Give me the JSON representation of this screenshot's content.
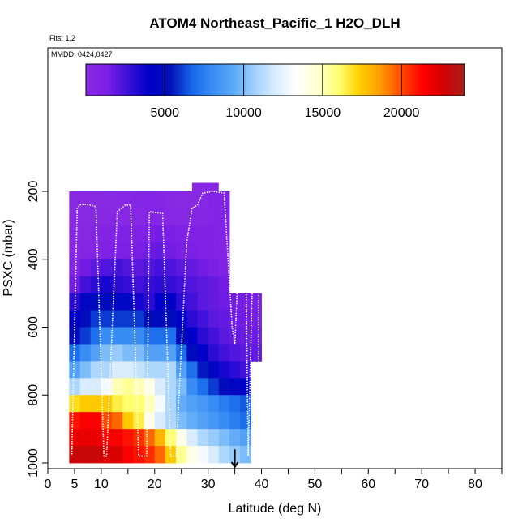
{
  "chart_data": {
    "type": "heatmap",
    "title": "ATOM4 Northeast_Pacific_1 H2O_DLH",
    "flights_label": "Flts: 1,2",
    "mmdd_label": "MMDD: 0424,0427",
    "xlabel": "Latitude (deg N)",
    "ylabel": "PSXC (mbar)",
    "xlim": [
      0,
      85
    ],
    "ylim": [
      1000,
      100
    ],
    "x_ticks": [
      0,
      5,
      10,
      20,
      30,
      40,
      50,
      60,
      70,
      80
    ],
    "x_tick_labels": [
      "0",
      "5",
      "10",
      "20",
      "30",
      "40",
      "50",
      "60",
      "70",
      "80"
    ],
    "x_minor_ticks": [
      15,
      25,
      35,
      45,
      55,
      65,
      75,
      85
    ],
    "y_ticks": [
      200,
      400,
      600,
      800,
      1000
    ],
    "y_tick_labels": [
      "200",
      "400",
      "600",
      "800",
      "1000"
    ],
    "colorbar": {
      "min": 0,
      "max": 24000,
      "ticks": [
        5000,
        10000,
        15000,
        20000
      ],
      "tick_labels": [
        "5000",
        "10000",
        "15000",
        "20000"
      ],
      "colors": [
        "#8a2be2",
        "#7b1fe6",
        "#3a10d8",
        "#0000c8",
        "#0010b8",
        "#1565e8",
        "#3a8cf5",
        "#5aa8f8",
        "#9fd0fb",
        "#d8ecfd",
        "#ffffff",
        "#ffffd0",
        "#ffff70",
        "#ffd000",
        "#ff9a00",
        "#ff4a00",
        "#ff0000",
        "#d40000",
        "#a52020"
      ]
    },
    "pressure_levels": [
      225,
      275,
      325,
      375,
      425,
      475,
      525,
      575,
      625,
      675,
      725,
      775,
      825,
      875,
      925,
      975
    ],
    "lat_bins": [
      4,
      6,
      8,
      10,
      12,
      14,
      16,
      18,
      20,
      22,
      24,
      26,
      28,
      30,
      32,
      34,
      36,
      38,
      40
    ],
    "h2o_ppmv": [
      [
        100,
        120,
        150,
        200,
        300,
        350,
        600,
        700,
        500,
        300,
        200,
        300,
        400,
        800,
        900,
        800,
        1000,
        1100,
        1200
      ],
      [
        150,
        200,
        250,
        300,
        400,
        400,
        400,
        500,
        500,
        400,
        300,
        400,
        500,
        700,
        800,
        900,
        1000,
        1100,
        1200
      ],
      [
        300,
        400,
        600,
        800,
        1000,
        1000,
        1000,
        1200,
        1500,
        1300,
        1000,
        1000,
        900,
        900,
        800,
        700,
        800,
        900,
        1000
      ],
      [
        400,
        600,
        800,
        1000,
        1200,
        1200,
        1400,
        1600,
        1800,
        1500,
        1300,
        1200,
        1000,
        900,
        800,
        700,
        800,
        900,
        1000
      ],
      [
        800,
        1500,
        2000,
        2200,
        2500,
        2200,
        2000,
        2200,
        2500,
        2300,
        2000,
        1800,
        1500,
        1200,
        1000,
        900,
        800,
        900,
        1000
      ],
      [
        1500,
        2500,
        3000,
        3500,
        3000,
        2800,
        2500,
        2800,
        3000,
        2800,
        2500,
        2200,
        2000,
        1800,
        1500,
        1300,
        1200,
        1000,
        1000
      ],
      [
        3000,
        4500,
        5000,
        5000,
        4500,
        4500,
        3500,
        3000,
        4000,
        4000,
        3000,
        2500,
        2000,
        1800,
        1600,
        1500,
        1400,
        1300,
        1200
      ],
      [
        4000,
        5000,
        6000,
        6000,
        6000,
        6000,
        6000,
        5000,
        5000,
        5000,
        4000,
        3000,
        2500,
        2000,
        1800,
        1600,
        1500,
        1400,
        1300
      ],
      [
        5000,
        6000,
        7000,
        8000,
        8000,
        8000,
        8000,
        7000,
        7000,
        7000,
        5000,
        4000,
        3000,
        2500,
        2000,
        1800,
        1700,
        1600,
        1500
      ],
      [
        7000,
        8000,
        9000,
        10000,
        10500,
        10000,
        10000,
        9000,
        9000,
        9000,
        7000,
        5000,
        4000,
        3000,
        2500,
        2200,
        2000,
        1800,
        1700
      ],
      [
        9000,
        10000,
        11000,
        11000,
        12000,
        12000,
        11500,
        11000,
        11000,
        11000,
        9000,
        7000,
        5500,
        4500,
        3500,
        3000,
        2500,
        2300,
        2100
      ],
      [
        11000,
        12000,
        12000,
        13000,
        15000,
        15500,
        15000,
        14000,
        12000,
        11000,
        10000,
        8000,
        7000,
        6000,
        5000,
        4500,
        4000,
        3500,
        3000
      ],
      [
        17000,
        17500,
        17500,
        17500,
        16500,
        16000,
        16000,
        15000,
        13000,
        11000,
        9500,
        9000,
        8500,
        8000,
        7500,
        7000,
        6500,
        6000,
        5500
      ],
      [
        21000,
        21500,
        21500,
        20000,
        19500,
        17500,
        16500,
        14000,
        12000,
        11000,
        10000,
        9500,
        9000,
        8500,
        8000,
        7500,
        7000,
        6500,
        6000
      ],
      [
        22000,
        22000,
        22000,
        21500,
        21500,
        21000,
        20500,
        19500,
        18000,
        16000,
        14000,
        12000,
        11000,
        10500,
        10000,
        9500,
        9000,
        8500,
        8000
      ],
      [
        23000,
        23000,
        23000,
        22500,
        22500,
        21500,
        21000,
        20500,
        19500,
        17500,
        15500,
        14000,
        13000,
        12000,
        11000,
        10500,
        10000,
        9500,
        9000
      ]
    ],
    "valid_range": [
      [
        4,
        34
      ],
      [
        4,
        34
      ],
      [
        4,
        34
      ],
      [
        4,
        34
      ],
      [
        4,
        34
      ],
      [
        4,
        34
      ],
      [
        4,
        40
      ],
      [
        4,
        40
      ],
      [
        4,
        40
      ],
      [
        4,
        40
      ],
      [
        4,
        38
      ],
      [
        4,
        38
      ],
      [
        4,
        38
      ],
      [
        4,
        38
      ],
      [
        4,
        38
      ],
      [
        4,
        38
      ]
    ],
    "extra_patch": {
      "lat_min": 27,
      "lat_max": 32,
      "p_min": 175,
      "p_max": 200,
      "value": 200
    },
    "flight_path": [
      [
        4.5,
        975
      ],
      [
        5.5,
        250
      ],
      [
        6.0,
        240
      ],
      [
        7.0,
        238
      ],
      [
        8.0,
        240
      ],
      [
        9.0,
        245
      ],
      [
        10.5,
        980
      ],
      [
        11.0,
        980
      ],
      [
        13.0,
        260
      ],
      [
        14.5,
        240
      ],
      [
        15.5,
        240
      ],
      [
        17.0,
        980
      ],
      [
        18.5,
        980
      ],
      [
        19.0,
        260
      ],
      [
        21.5,
        265
      ],
      [
        23.0,
        980
      ],
      [
        24.0,
        980
      ],
      [
        26.0,
        350
      ],
      [
        27.0,
        250
      ],
      [
        28.0,
        240
      ],
      [
        29.0,
        205
      ],
      [
        31.0,
        200
      ],
      [
        33.0,
        205
      ],
      [
        34.5,
        600
      ],
      [
        35.0,
        650
      ],
      [
        36.0,
        300
      ],
      [
        37.0,
        300
      ],
      [
        37.5,
        980
      ],
      [
        38.5,
        330
      ],
      [
        39.5,
        330
      ],
      [
        39.5,
        980
      ]
    ],
    "arrow_latitude": 35
  }
}
